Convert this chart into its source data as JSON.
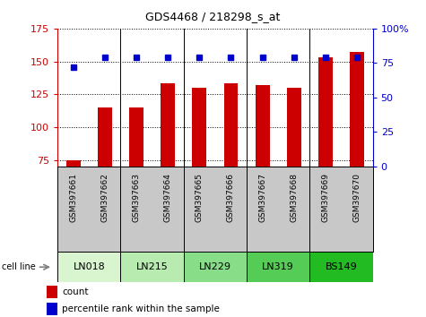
{
  "title": "GDS4468 / 218298_s_at",
  "samples": [
    "GSM397661",
    "GSM397662",
    "GSM397663",
    "GSM397664",
    "GSM397665",
    "GSM397666",
    "GSM397667",
    "GSM397668",
    "GSM397669",
    "GSM397670"
  ],
  "counts": [
    75,
    115,
    115,
    133,
    130,
    133,
    132,
    130,
    153,
    157
  ],
  "percentile_ranks": [
    72,
    79,
    79,
    79,
    79,
    79,
    79,
    79,
    79,
    79
  ],
  "cell_line_defs": [
    {
      "name": "LN018",
      "start": 0,
      "end": 1,
      "color": "#d8f5d0"
    },
    {
      "name": "LN215",
      "start": 2,
      "end": 3,
      "color": "#b8ebb0"
    },
    {
      "name": "LN229",
      "start": 4,
      "end": 5,
      "color": "#88dd88"
    },
    {
      "name": "LN319",
      "start": 6,
      "end": 7,
      "color": "#55cc55"
    },
    {
      "name": "BS149",
      "start": 8,
      "end": 9,
      "color": "#22bb22"
    }
  ],
  "ylim_left": [
    70,
    175
  ],
  "ylim_right": [
    0,
    100
  ],
  "yticks_left": [
    75,
    100,
    125,
    150,
    175
  ],
  "yticks_right": [
    0,
    25,
    50,
    75,
    100
  ],
  "bar_color": "#cc0000",
  "dot_color": "#0000cc",
  "bar_width": 0.45,
  "left_axis_color": "#cc0000",
  "right_axis_color": "#0000cc",
  "sample_bg": "#c8c8c8",
  "legend_count_color": "#cc0000",
  "legend_pct_color": "#0000cc",
  "separators": [
    1.5,
    3.5,
    5.5,
    7.5
  ]
}
